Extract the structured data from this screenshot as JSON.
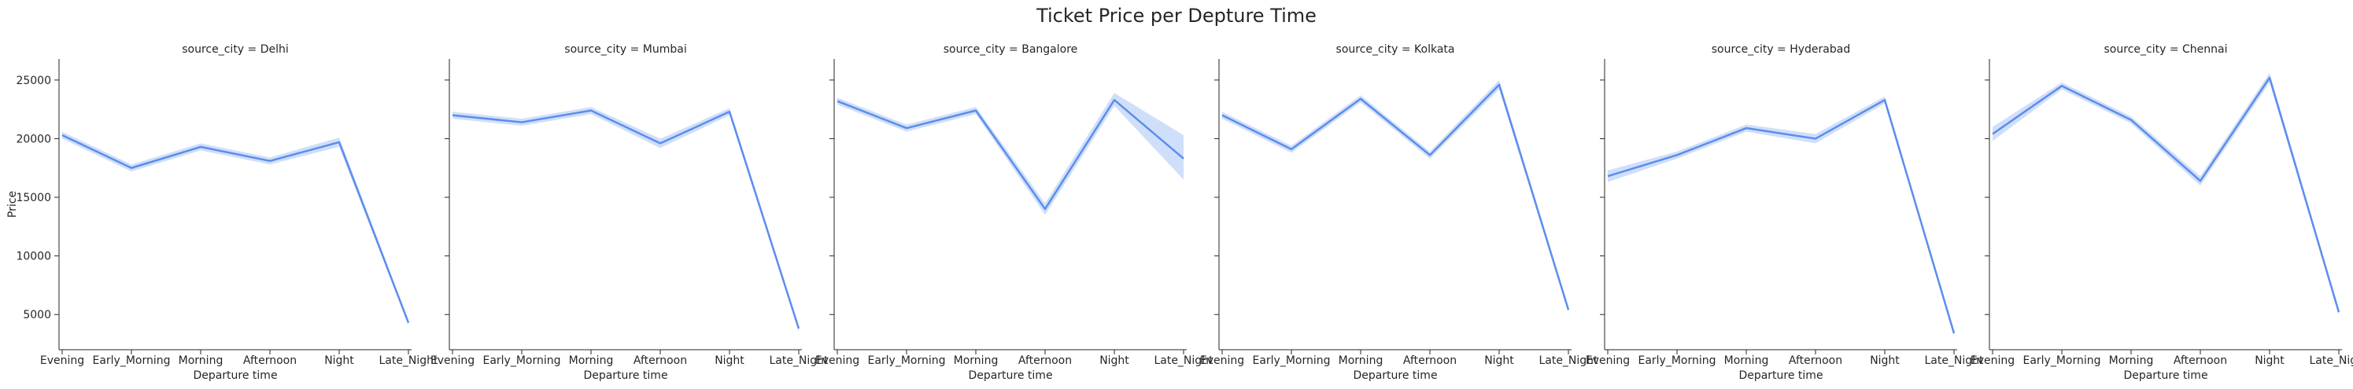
{
  "chart_data": {
    "type": "line",
    "title": "Ticket Price per Depture Time",
    "xlabel": "Departure time",
    "ylabel": "Price",
    "categories": [
      "Evening",
      "Early_Morning",
      "Morning",
      "Afternoon",
      "Night",
      "Late_Night"
    ],
    "yticks": [
      "5000",
      "10000",
      "15000",
      "20000",
      "25000"
    ],
    "ylim": [
      2000,
      26800
    ],
    "grid": false,
    "line_color": "#5b8def",
    "band_color": "#c4d7f8",
    "panels": [
      {
        "title": "source_city = Delhi",
        "values": [
          20300,
          17500,
          19300,
          18100,
          19700,
          4300
        ],
        "ci": [
          [
            20000,
            20600
          ],
          [
            17200,
            17800
          ],
          [
            19000,
            19600
          ],
          [
            17800,
            18400
          ],
          [
            19300,
            20100
          ],
          [
            4100,
            4500
          ]
        ]
      },
      {
        "title": "source_city = Mumbai",
        "values": [
          22000,
          21400,
          22400,
          19600,
          22300,
          3800
        ],
        "ci": [
          [
            21700,
            22300
          ],
          [
            21100,
            21700
          ],
          [
            22100,
            22700
          ],
          [
            19200,
            20000
          ],
          [
            22000,
            22600
          ],
          [
            3600,
            4000
          ]
        ]
      },
      {
        "title": "source_city = Bangalore",
        "values": [
          23200,
          20900,
          22400,
          14000,
          23300,
          18300
        ],
        "ci": [
          [
            22900,
            23500
          ],
          [
            20600,
            21200
          ],
          [
            22100,
            22700
          ],
          [
            13500,
            14500
          ],
          [
            22800,
            23900
          ],
          [
            16500,
            20300
          ]
        ]
      },
      {
        "title": "source_city = Kolkata",
        "values": [
          22000,
          19100,
          23400,
          18600,
          24600,
          5400
        ],
        "ci": [
          [
            21700,
            22300
          ],
          [
            18800,
            19400
          ],
          [
            23100,
            23700
          ],
          [
            18300,
            18900
          ],
          [
            24200,
            25000
          ],
          [
            5200,
            5600
          ]
        ]
      },
      {
        "title": "source_city = Hyderabad",
        "values": [
          16800,
          18600,
          20900,
          20000,
          23300,
          3400
        ],
        "ci": [
          [
            16300,
            17300
          ],
          [
            18300,
            18900
          ],
          [
            20600,
            21200
          ],
          [
            19600,
            20400
          ],
          [
            23000,
            23600
          ],
          [
            3200,
            3600
          ]
        ]
      },
      {
        "title": "source_city = Chennai",
        "values": [
          20400,
          24500,
          21600,
          16400,
          25200,
          5200
        ],
        "ci": [
          [
            19800,
            21000
          ],
          [
            24200,
            24800
          ],
          [
            21300,
            21900
          ],
          [
            16000,
            16800
          ],
          [
            24800,
            25600
          ],
          [
            5000,
            5400
          ]
        ]
      }
    ]
  }
}
